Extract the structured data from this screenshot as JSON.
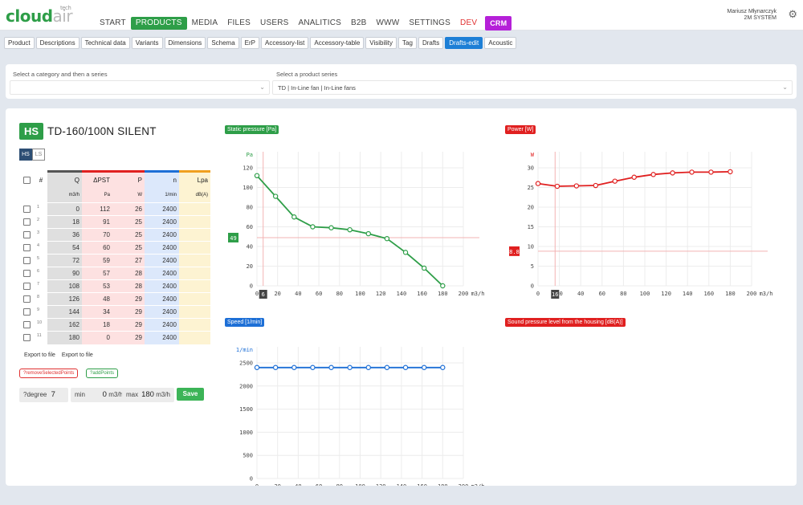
{
  "app": {
    "logo_main": "cloud",
    "logo_air": "air",
    "logo_sup": "tech"
  },
  "nav": [
    {
      "label": "START"
    },
    {
      "label": "PRODUCTS"
    },
    {
      "label": "MEDIA"
    },
    {
      "label": "FILES"
    },
    {
      "label": "USERS"
    },
    {
      "label": "ANALITICS"
    },
    {
      "label": "B2B"
    },
    {
      "label": "WWW"
    },
    {
      "label": "SETTINGS"
    },
    {
      "label": "DEV"
    },
    {
      "label": "CRM"
    }
  ],
  "user": {
    "name": "Mariusz Młynarczyk",
    "company": "2M SYSTEM"
  },
  "tabs": [
    {
      "label": "Product"
    },
    {
      "label": "Descriptions"
    },
    {
      "label": "Technical data"
    },
    {
      "label": "Variants"
    },
    {
      "label": "Dimensions"
    },
    {
      "label": "Schema"
    },
    {
      "label": "ErP"
    },
    {
      "label": "Accessory-list"
    },
    {
      "label": "Accessory-table"
    },
    {
      "label": "Visibility"
    },
    {
      "label": "Tag"
    },
    {
      "label": "Drafts"
    },
    {
      "label": "Drafts-edit"
    },
    {
      "label": "Acoustic"
    }
  ],
  "selectors": {
    "category_label": "Select a category and then a series",
    "category_value": "",
    "series_label": "Select a product series",
    "series_value": "TD | In-Line fan | In-Line fans"
  },
  "product": {
    "badge": "HS",
    "title": "TD-160/100N SILENT",
    "toggle_on": "HS",
    "toggle_off": "LS"
  },
  "table": {
    "headers": {
      "num": "#",
      "q": "Q",
      "dp": "ΔPST",
      "p": "P",
      "n": "n",
      "lpa": "Lpa"
    },
    "units": {
      "q": "m3/h",
      "dp": "Pa",
      "p": "W",
      "n": "1/min",
      "lpa": "dB(A)"
    },
    "rows": [
      {
        "i": "1",
        "q": "0",
        "dp": "112",
        "p": "26",
        "n": "2400",
        "lpa": ""
      },
      {
        "i": "2",
        "q": "18",
        "dp": "91",
        "p": "25",
        "n": "2400",
        "lpa": ""
      },
      {
        "i": "3",
        "q": "36",
        "dp": "70",
        "p": "25",
        "n": "2400",
        "lpa": ""
      },
      {
        "i": "4",
        "q": "54",
        "dp": "60",
        "p": "25",
        "n": "2400",
        "lpa": ""
      },
      {
        "i": "5",
        "q": "72",
        "dp": "59",
        "p": "27",
        "n": "2400",
        "lpa": ""
      },
      {
        "i": "6",
        "q": "90",
        "dp": "57",
        "p": "28",
        "n": "2400",
        "lpa": ""
      },
      {
        "i": "7",
        "q": "108",
        "dp": "53",
        "p": "28",
        "n": "2400",
        "lpa": ""
      },
      {
        "i": "8",
        "q": "126",
        "dp": "48",
        "p": "29",
        "n": "2400",
        "lpa": ""
      },
      {
        "i": "9",
        "q": "144",
        "dp": "34",
        "p": "29",
        "n": "2400",
        "lpa": ""
      },
      {
        "i": "10",
        "q": "162",
        "dp": "18",
        "p": "29",
        "n": "2400",
        "lpa": ""
      },
      {
        "i": "11",
        "q": "180",
        "dp": "0",
        "p": "29",
        "n": "2400",
        "lpa": ""
      }
    ]
  },
  "actions": {
    "export1": "Export to file",
    "export2": "Export to file",
    "remove": "?removeSelectedPoints",
    "add": "?addPoints",
    "save": "Save"
  },
  "controls": {
    "degree_label": "?degree",
    "degree_value": "7",
    "min_label": "min",
    "min_value": "0",
    "max_label": "max",
    "max_value": "180",
    "unit": "m3/h"
  },
  "colors": {
    "green": "#2e9e48",
    "red": "#e02020",
    "blue": "#1d6fd6",
    "crm": "#b520d8",
    "tab_active": "#1d7fd6"
  },
  "chart_data": [
    {
      "type": "line",
      "title": "Static pressure [Pa]",
      "color": "#2e9e48",
      "x_unit": "m3/h",
      "y_unit": "Pa",
      "xlim": [
        0,
        200
      ],
      "ylim": [
        0,
        120
      ],
      "x_ticks": [
        0,
        20,
        40,
        60,
        80,
        100,
        120,
        140,
        160,
        180,
        200
      ],
      "y_ticks": [
        0,
        20,
        40,
        60,
        80,
        100,
        120
      ],
      "x": [
        0,
        18,
        36,
        54,
        72,
        90,
        108,
        126,
        144,
        162,
        180
      ],
      "y": [
        112,
        91,
        70,
        60,
        59,
        57,
        53,
        48,
        34,
        18,
        0
      ],
      "cursor_x": "6",
      "cursor_y": "49"
    },
    {
      "type": "line",
      "title": "Power [W]",
      "color": "#e02020",
      "x_unit": "m3/h",
      "y_unit": "W",
      "xlim": [
        0,
        200
      ],
      "ylim": [
        0,
        30
      ],
      "x_ticks": [
        0,
        20,
        40,
        60,
        80,
        100,
        120,
        140,
        160,
        180,
        200
      ],
      "y_ticks": [
        0,
        5,
        10,
        15,
        20,
        25,
        30
      ],
      "x": [
        0,
        18,
        36,
        54,
        72,
        90,
        108,
        126,
        144,
        162,
        180
      ],
      "y": [
        26,
        25.3,
        25.4,
        25.5,
        26.6,
        27.6,
        28.3,
        28.7,
        28.9,
        28.9,
        29
      ],
      "cursor_x": "16",
      "cursor_y": "8.8"
    },
    {
      "type": "line",
      "title": "Speed [1/min]",
      "color": "#1d6fd6",
      "x_unit": "m3/h",
      "y_unit": "1/min",
      "xlim": [
        0,
        200
      ],
      "ylim": [
        0,
        2500
      ],
      "x_ticks": [
        0,
        20,
        40,
        60,
        80,
        100,
        120,
        140,
        160,
        180,
        200
      ],
      "y_ticks": [
        0,
        500,
        1000,
        1500,
        2000,
        2500
      ],
      "x": [
        0,
        18,
        36,
        54,
        72,
        90,
        108,
        126,
        144,
        162,
        180
      ],
      "y": [
        2400,
        2400,
        2400,
        2400,
        2400,
        2400,
        2400,
        2400,
        2400,
        2400,
        2400
      ]
    },
    {
      "type": "line",
      "title": "Sound pressure level from the housing [dB(A)]",
      "color": "#e02020",
      "x": [],
      "y": []
    }
  ]
}
